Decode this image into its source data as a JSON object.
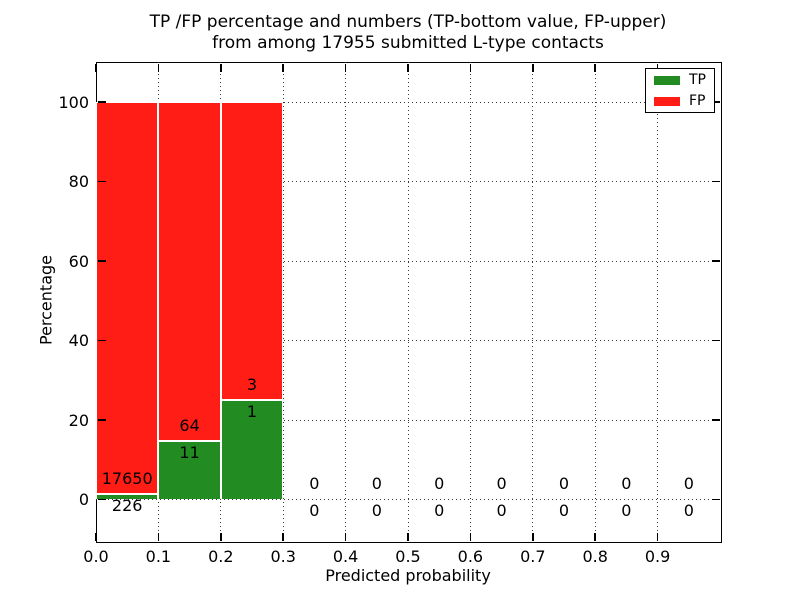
{
  "chart_data": {
    "type": "bar",
    "stacked": true,
    "title": "TP /FP percentage and numbers (TP-bottom value, FP-upper)",
    "subtitle": "from among 17955 submitted L-type contacts",
    "xlabel": "Predicted probability",
    "ylabel": "Percentage",
    "xlim": [
      0.0,
      1.0
    ],
    "ylim": [
      -10.5,
      110.0
    ],
    "xtick_labels": [
      "0.0",
      "0.1",
      "0.2",
      "0.3",
      "0.4",
      "0.5",
      "0.6",
      "0.7",
      "0.8",
      "0.9"
    ],
    "xtick_values": [
      0.0,
      0.1,
      0.2,
      0.3,
      0.4,
      0.5,
      0.6,
      0.7,
      0.8,
      0.9
    ],
    "ytick_values": [
      0,
      20,
      40,
      60,
      80,
      100
    ],
    "grid": "dotted",
    "bin_width": 0.1,
    "colors": {
      "tp": "#228b22",
      "fp": "#ff1d15"
    },
    "legend": {
      "position": "upper right",
      "entries": [
        {
          "label": "TP",
          "color": "#228b22"
        },
        {
          "label": "FP",
          "color": "#ff1d15"
        }
      ]
    },
    "bins": [
      {
        "x0": 0.0,
        "tp_count": 226,
        "fp_count": 17650,
        "tp_pct": 1.264,
        "fp_pct": 98.736
      },
      {
        "x0": 0.1,
        "tp_count": 11,
        "fp_count": 64,
        "tp_pct": 14.667,
        "fp_pct": 85.333
      },
      {
        "x0": 0.2,
        "tp_count": 1,
        "fp_count": 3,
        "tp_pct": 25.0,
        "fp_pct": 75.0
      },
      {
        "x0": 0.3,
        "tp_count": 0,
        "fp_count": 0,
        "tp_pct": 0,
        "fp_pct": 0
      },
      {
        "x0": 0.4,
        "tp_count": 0,
        "fp_count": 0,
        "tp_pct": 0,
        "fp_pct": 0
      },
      {
        "x0": 0.5,
        "tp_count": 0,
        "fp_count": 0,
        "tp_pct": 0,
        "fp_pct": 0
      },
      {
        "x0": 0.6,
        "tp_count": 0,
        "fp_count": 0,
        "tp_pct": 0,
        "fp_pct": 0
      },
      {
        "x0": 0.7,
        "tp_count": 0,
        "fp_count": 0,
        "tp_pct": 0,
        "fp_pct": 0
      },
      {
        "x0": 0.8,
        "tp_count": 0,
        "fp_count": 0,
        "tp_pct": 0,
        "fp_pct": 0
      },
      {
        "x0": 0.9,
        "tp_count": 0,
        "fp_count": 0,
        "tp_pct": 0,
        "fp_pct": 0
      }
    ]
  }
}
